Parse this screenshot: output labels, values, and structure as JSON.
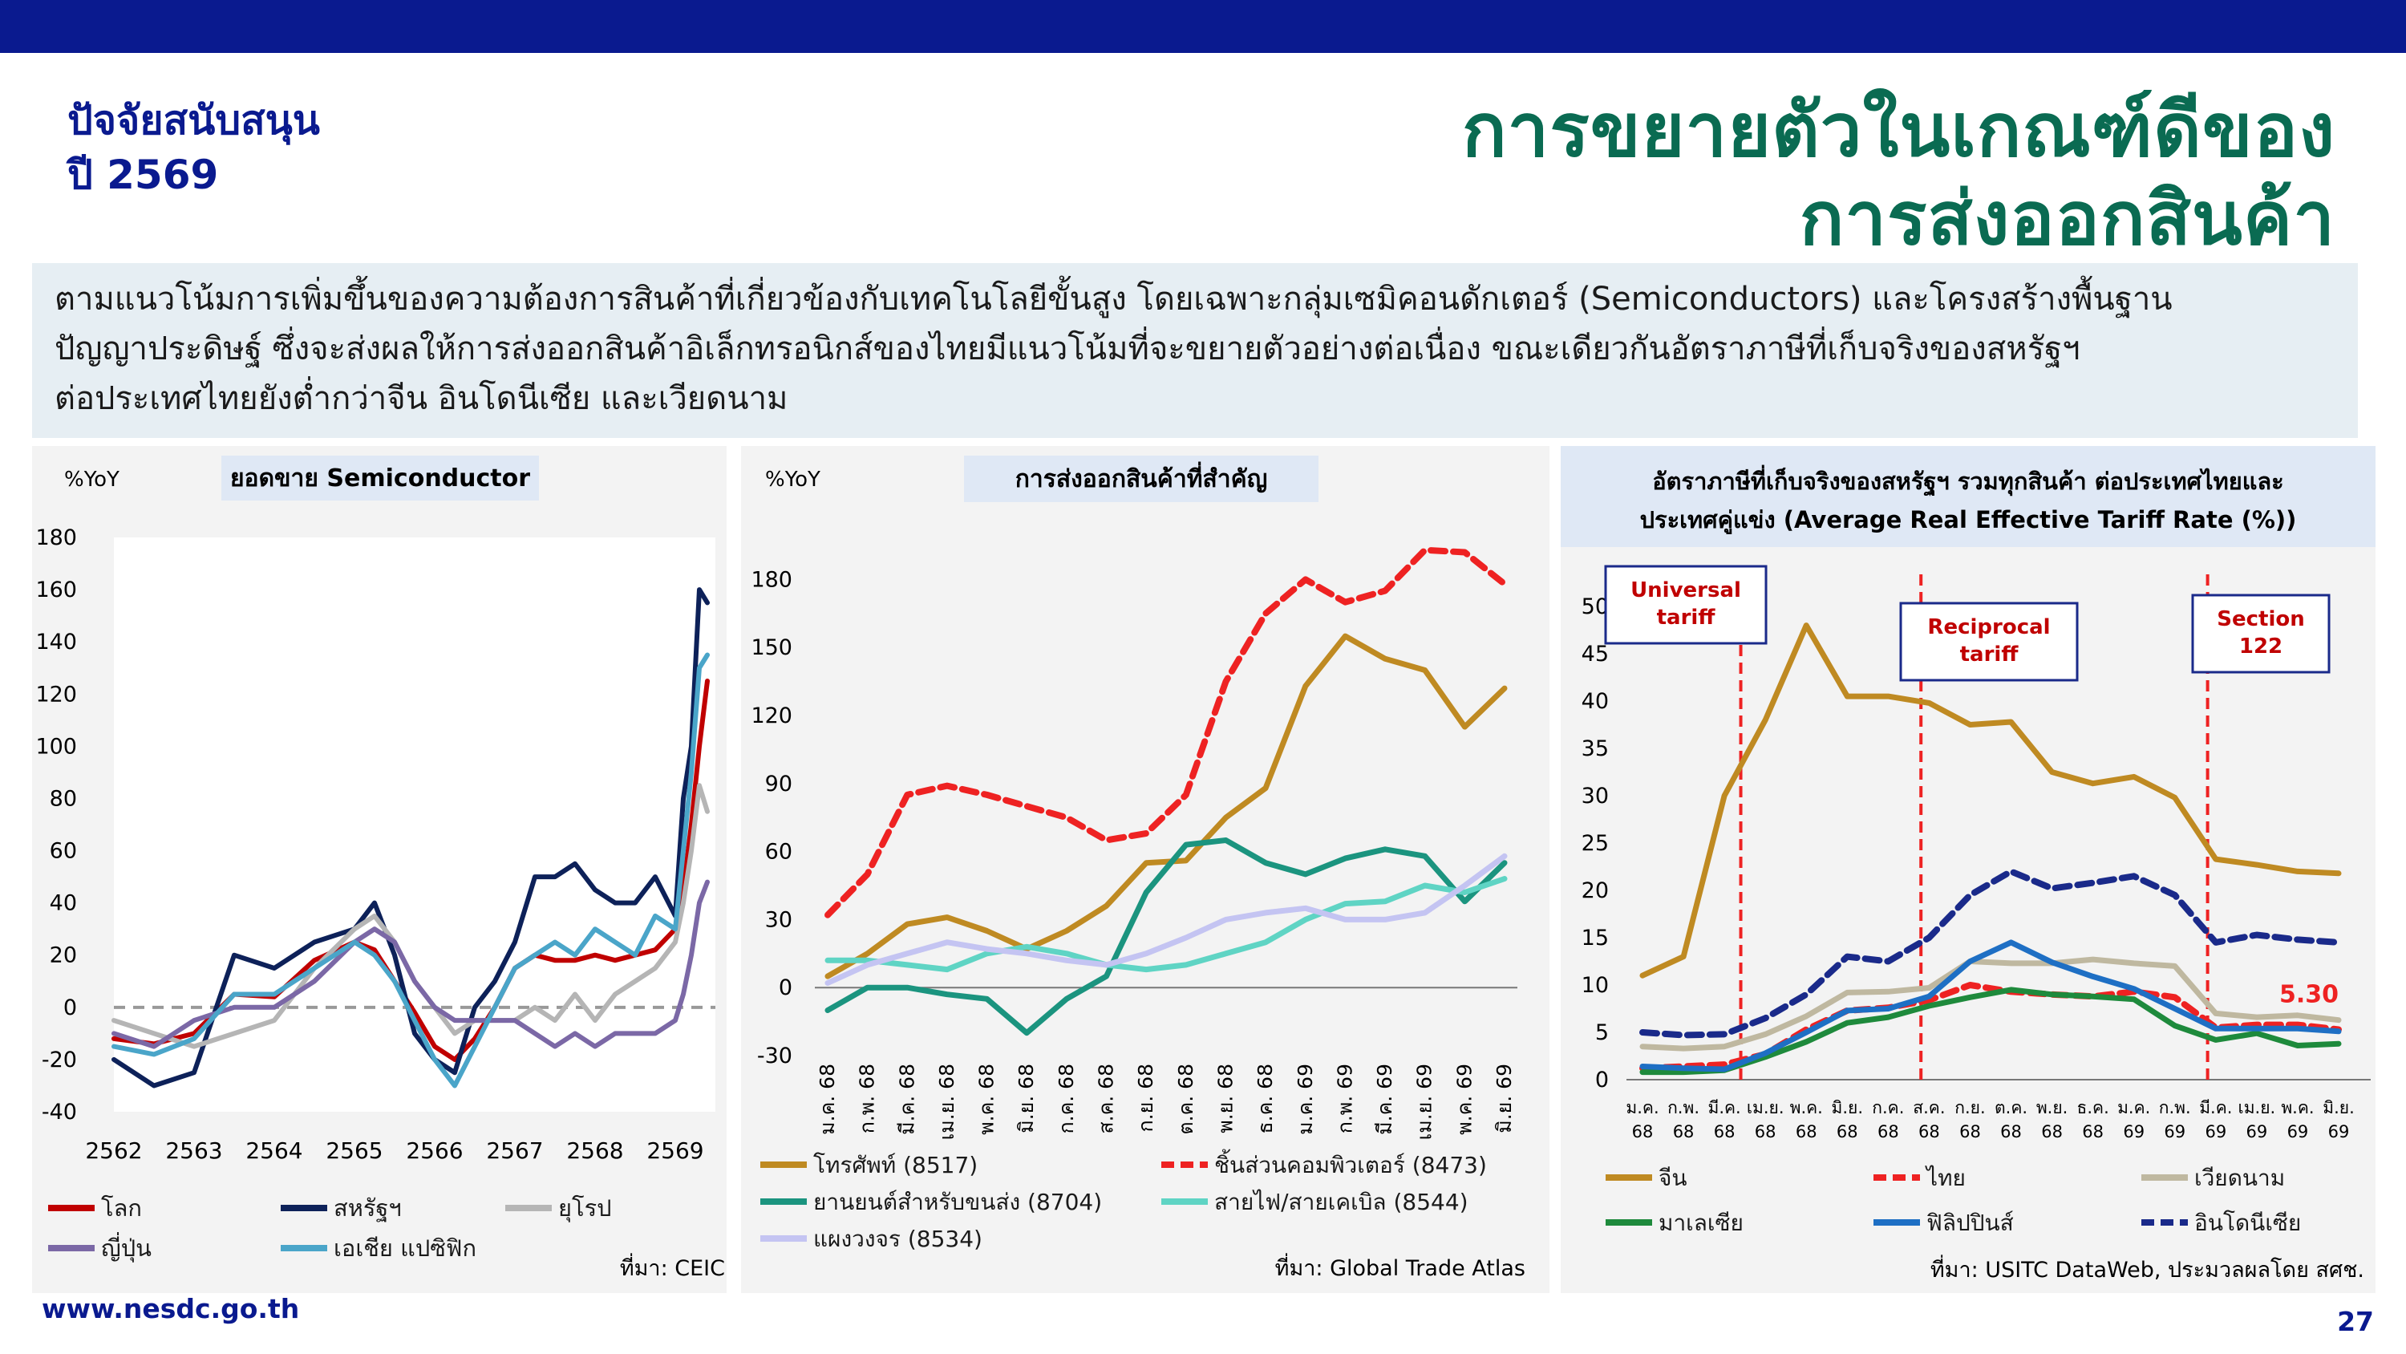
{
  "header": {
    "subtitle_line1": "ปัจจัยสนับสนุน",
    "subtitle_line2": "ปี 2569",
    "title_line1": "การขยายตัวในเกณฑ์ดีของ",
    "title_line2": "การส่งออกสินค้า"
  },
  "summary": {
    "line1": "ตามแนวโน้มการเพิ่มขึ้นของความต้องการสินค้าที่เกี่ยวข้องกับเทคโนโลยีขั้นสูง โดยเฉพาะกลุ่มเซมิคอนดักเตอร์ (Semiconductors) และโครงสร้างพื้นฐาน",
    "line2": "ปัญญาประดิษฐ์ ซึ่งจะส่งผลให้การส่งออกสินค้าอิเล็กทรอนิกส์ของไทยมีแนวโน้มที่จะขยายตัวอย่างต่อเนื่อง ขณะเดียวกันอัตราภาษีที่เก็บจริงของสหรัฐฯ",
    "line3": "ต่อประเทศไทยยังต่ำกว่าจีน อินโดนีเซีย และเวียดนาม"
  },
  "footer": {
    "url": "www.nesdc.go.th",
    "page": "27"
  },
  "chart_data": [
    {
      "type": "line",
      "title": "ยอดขาย Semiconductor",
      "ylabel": "%YoY",
      "ylim": [
        -40,
        180
      ],
      "yticks": [
        "180",
        "160",
        "140",
        "120",
        "100",
        "80",
        "60",
        "40",
        "20",
        "0",
        "-20",
        "-40"
      ],
      "xlim": [
        2562,
        2569.5
      ],
      "xticks": [
        "2562",
        "2563",
        "2564",
        "2565",
        "2566",
        "2567",
        "2568",
        "2569"
      ],
      "x": [
        2562.0,
        2562.5,
        2563.0,
        2563.5,
        2564.0,
        2564.5,
        2565.0,
        2565.25,
        2565.5,
        2565.75,
        2566.0,
        2566.25,
        2566.5,
        2566.75,
        2567.0,
        2567.25,
        2567.5,
        2567.75,
        2568.0,
        2568.25,
        2568.5,
        2568.75,
        2569.0,
        2569.1,
        2569.2,
        2569.3,
        2569.4
      ],
      "series": [
        {
          "name": "โลก",
          "color": "#c00000",
          "values": [
            -12,
            -14,
            -10,
            5,
            4,
            18,
            25,
            22,
            10,
            -2,
            -15,
            -20,
            -12,
            0,
            15,
            20,
            18,
            18,
            20,
            18,
            20,
            22,
            30,
            45,
            70,
            100,
            125
          ]
        },
        {
          "name": "สหรัฐฯ",
          "color": "#0d2159",
          "values": [
            -20,
            -30,
            -25,
            20,
            15,
            25,
            30,
            40,
            20,
            -10,
            -20,
            -25,
            0,
            10,
            25,
            50,
            50,
            55,
            45,
            40,
            40,
            50,
            35,
            80,
            100,
            160,
            155
          ]
        },
        {
          "name": "ยุโรป",
          "color": "#b5b5b5",
          "values": [
            -5,
            -10,
            -15,
            -10,
            -5,
            15,
            30,
            35,
            25,
            10,
            0,
            -10,
            -5,
            -5,
            -5,
            0,
            -5,
            5,
            -5,
            5,
            10,
            15,
            25,
            40,
            60,
            85,
            75
          ]
        },
        {
          "name": "ญี่ปุ่น",
          "color": "#7b68a6",
          "values": [
            -10,
            -15,
            -5,
            0,
            0,
            10,
            25,
            30,
            25,
            10,
            0,
            -5,
            -5,
            -5,
            -5,
            -10,
            -15,
            -10,
            -15,
            -10,
            -10,
            -10,
            -5,
            5,
            20,
            40,
            48
          ]
        },
        {
          "name": "เอเชีย แปซิฟิก",
          "color": "#4aa5c9",
          "values": [
            -15,
            -18,
            -12,
            5,
            5,
            15,
            25,
            20,
            10,
            -5,
            -20,
            -30,
            -15,
            0,
            15,
            20,
            25,
            20,
            30,
            25,
            20,
            35,
            30,
            60,
            90,
            130,
            135
          ]
        }
      ],
      "legend": "bottom",
      "source": "ที่มา: CEIC"
    },
    {
      "type": "line",
      "title": "การส่งออกสินค้าที่สำคัญ",
      "ylabel": "%YoY",
      "ylim": [
        -30,
        195
      ],
      "yticks": [
        "180",
        "150",
        "120",
        "90",
        "60",
        "30",
        "0",
        "-30"
      ],
      "categories": [
        "ม.ค. 68",
        "ก.พ. 68",
        "มี.ค. 68",
        "เม.ย. 68",
        "พ.ค. 68",
        "มิ.ย. 68",
        "ก.ค. 68",
        "ส.ค. 68",
        "ก.ย. 68",
        "ต.ค. 68",
        "พ.ย. 68",
        "ธ.ค. 68",
        "ม.ค. 69",
        "ก.พ. 69",
        "มี.ค. 69",
        "เม.ย. 69",
        "พ.ค. 69",
        "มิ.ย. 69"
      ],
      "series": [
        {
          "name": "โทรศัพท์ (8517)",
          "color": "#bf8a22",
          "dash": false,
          "values": [
            5,
            15,
            28,
            31,
            25,
            17,
            25,
            36,
            55,
            56,
            75,
            88,
            133,
            155,
            145,
            140,
            115,
            132
          ]
        },
        {
          "name": "ชิ้นส่วนคอมพิวเตอร์ (8473)",
          "color": "#ee2222",
          "dash": true,
          "values": [
            32,
            50,
            85,
            89,
            85,
            80,
            75,
            65,
            68,
            85,
            135,
            165,
            180,
            170,
            175,
            193,
            192,
            178
          ]
        },
        {
          "name": "ยานยนต์สำหรับขนส่ง (8704)",
          "color": "#1b947f",
          "dash": false,
          "values": [
            -10,
            0,
            0,
            -3,
            -5,
            -20,
            -5,
            5,
            42,
            63,
            65,
            55,
            50,
            57,
            61,
            58,
            38,
            55
          ]
        },
        {
          "name": "สายไฟ/สายเคเบิล (8544)",
          "color": "#5fd4c4",
          "dash": false,
          "values": [
            12,
            12,
            10,
            8,
            15,
            18,
            15,
            10,
            8,
            10,
            15,
            20,
            30,
            37,
            38,
            45,
            42,
            48
          ]
        },
        {
          "name": "แผงวงจร (8534)",
          "color": "#c4c4f2",
          "dash": false,
          "values": [
            2,
            10,
            15,
            20,
            17,
            15,
            12,
            10,
            15,
            22,
            30,
            33,
            35,
            30,
            30,
            33,
            45,
            58
          ]
        }
      ],
      "legend": "bottom",
      "source": "ที่มา: Global Trade Atlas"
    },
    {
      "type": "line",
      "title": "อัตราภาษีที่เก็บจริงของสหรัฐฯ รวมทุกสินค้า ต่อประเทศไทยและ ประเทศคู่แข่ง (Average Real Effective Tariff Rate (%))",
      "ylim": [
        0,
        50
      ],
      "yticks": [
        "50",
        "45",
        "40",
        "35",
        "30",
        "25",
        "20",
        "15",
        "10",
        "5",
        "0"
      ],
      "categories": [
        "ม.ค. 68",
        "ก.พ. 68",
        "มี.ค. 68",
        "เม.ย. 68",
        "พ.ค. 68",
        "มิ.ย. 68",
        "ก.ค. 68",
        "ส.ค. 68",
        "ก.ย. 68",
        "ต.ค. 68",
        "พ.ย. 68",
        "ธ.ค. 68",
        "ม.ค. 69",
        "ก.พ. 69",
        "มี.ค. 69",
        "เม.ย. 69",
        "พ.ค. 69",
        "มิ.ย. 69"
      ],
      "annotations": [
        {
          "label": "Universal tariff",
          "at": 2.4
        },
        {
          "label": "Reciprocal tariff",
          "at": 6.8
        },
        {
          "label": "Section 122",
          "at": 13.8
        }
      ],
      "thailand_label": "5.30",
      "series": [
        {
          "name": "จีน",
          "color": "#bf8a22",
          "dash": false,
          "values": [
            11,
            13,
            30,
            38,
            48,
            40.5,
            40.5,
            39.8,
            37.5,
            37.8,
            32.5,
            31.3,
            32,
            29.8,
            23.3,
            22.7,
            22,
            21.8
          ]
        },
        {
          "name": "ไทย",
          "color": "#ee2222",
          "dash": true,
          "values": [
            1.2,
            1.4,
            1.6,
            2.7,
            5.3,
            7.3,
            7.6,
            8.4,
            10,
            9.3,
            9,
            8.8,
            9.3,
            8.7,
            5.5,
            5.8,
            5.8,
            5.3
          ]
        },
        {
          "name": "เวียดนาม",
          "color": "#bfb8a0",
          "dash": false,
          "values": [
            3.5,
            3.3,
            3.5,
            4.8,
            6.7,
            9.2,
            9.3,
            9.7,
            12.5,
            12.3,
            12.3,
            12.7,
            12.3,
            12,
            7,
            6.6,
            6.8,
            6.3
          ]
        },
        {
          "name": "มาเลเซีย",
          "color": "#1e8a3c",
          "dash": false,
          "values": [
            0.8,
            0.8,
            1,
            2.4,
            4,
            6,
            6.6,
            7.8,
            8.7,
            9.5,
            9,
            8.8,
            8.5,
            5.7,
            4.2,
            4.9,
            3.6,
            3.8
          ]
        },
        {
          "name": "ฟิลิปปินส์",
          "color": "#1e6fc4",
          "dash": false,
          "values": [
            1.4,
            1.2,
            1.1,
            2.8,
            5,
            7.3,
            7.5,
            8.8,
            12.5,
            14.5,
            12.4,
            10.9,
            9.6,
            7.5,
            5.4,
            5.4,
            5.4,
            5.1
          ]
        },
        {
          "name": "อินโดนีเซีย",
          "color": "#1a2a8a",
          "dash": true,
          "values": [
            5,
            4.7,
            4.8,
            6.5,
            9,
            13,
            12.5,
            15,
            19.5,
            22,
            20.2,
            20.8,
            21.5,
            19.5,
            14.5,
            15.3,
            14.8,
            14.5
          ]
        }
      ],
      "legend": "bottom",
      "source": "ที่มา: USITC DataWeb, ประมวลผลโดย สศช."
    }
  ]
}
